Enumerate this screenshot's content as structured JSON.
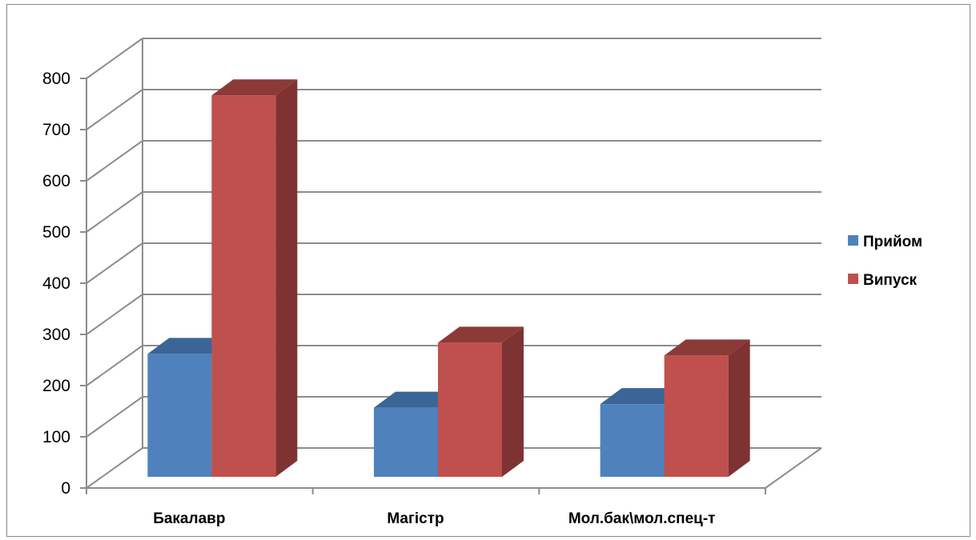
{
  "chart_data": {
    "type": "bar",
    "style": "3d-clustered-column",
    "categories": [
      "Бакалавр",
      "Магістр",
      "Мол.бак\\мол.спец-т"
    ],
    "series": [
      {
        "name": "Прийом",
        "values": [
          240,
          135,
          142
        ],
        "color": "#4F81BD",
        "top_color": "#3B6597"
      },
      {
        "name": "Випуск",
        "values": [
          745,
          262,
          237
        ],
        "color": "#C0504D",
        "side_color": "#7F3232"
      }
    ],
    "ylim": [
      0,
      800
    ],
    "yticks": [
      0,
      100,
      200,
      300,
      400,
      500,
      600,
      700,
      800
    ],
    "grid": true,
    "legend_position": "right",
    "title": "",
    "xlabel": "",
    "ylabel": ""
  }
}
